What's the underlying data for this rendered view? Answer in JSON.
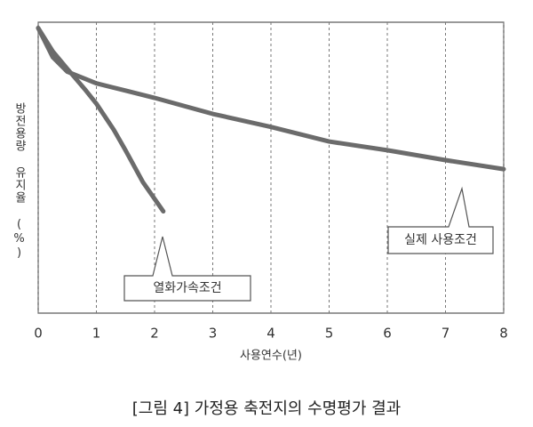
{
  "chart_data": {
    "type": "line",
    "caption": "[그림 4] 가정용 축전지의 수명평가 결과",
    "x_label": "사용연수(년)",
    "y_label": "방전용량 유지율 (%)",
    "xlim": [
      0,
      8
    ],
    "xticks": [
      0,
      1,
      2,
      3,
      4,
      5,
      6,
      7,
      8
    ],
    "ylim": [
      0,
      100
    ],
    "grid": true,
    "series": [
      {
        "name": "실제 사용조건",
        "color": "#6b6b6b",
        "x": [
          0,
          0.25,
          0.5,
          1,
          1.5,
          2,
          3,
          4,
          5,
          6,
          7,
          8
        ],
        "values": [
          98,
          88,
          83,
          79,
          76.5,
          74,
          68.5,
          64,
          59,
          56,
          52.6,
          49.5
        ]
      },
      {
        "name": "열화가속조건",
        "color": "#6b6b6b",
        "x": [
          0,
          0.25,
          0.5,
          0.8,
          1,
          1.3,
          1.5,
          1.8,
          2.15
        ],
        "values": [
          98,
          90,
          84,
          77,
          72,
          63,
          56,
          45,
          35
        ]
      }
    ]
  }
}
